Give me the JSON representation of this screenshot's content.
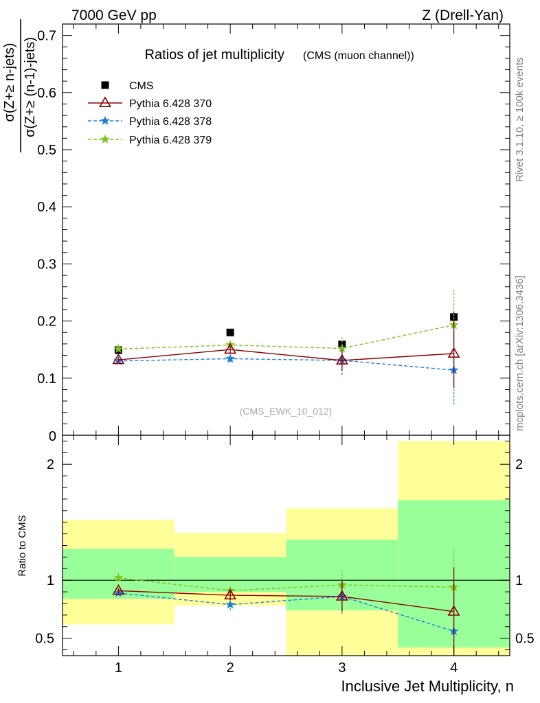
{
  "header": {
    "left": "7000 GeV pp",
    "right": "Z (Drell-Yan)"
  },
  "side_text": {
    "rivet": "Rivet 3.1.10, ≥ 100k events",
    "mcplots": "mcplots.cern.ch [arXiv:1306.3436]"
  },
  "colors": {
    "cms": "#000000",
    "p370": "#8b0000",
    "p378": "#1e7fe0",
    "p379": "#7fc31c",
    "band_yellow": "#ffff99",
    "band_green": "#99ff99"
  },
  "chart_data": [
    {
      "type": "scatter",
      "title": "Ratios of jet multiplicity",
      "subtitle": "(CMS (muon channel))",
      "watermark": "(CMS_EWK_10_012)",
      "ylabel_num": "σ(Z+≥ n-jets)",
      "ylabel_den": "σ(Z+≥ (n-1)-jets)",
      "xlim": [
        0.5,
        4.5
      ],
      "ylim": [
        0,
        0.72
      ],
      "yticks": [
        0.1,
        0.2,
        0.3,
        0.4,
        0.5,
        0.6,
        0.7
      ],
      "ytick_labels": [
        "0.1",
        "0.2",
        "0.3",
        "0.4",
        "0.5",
        "0.6",
        "0.7"
      ],
      "x": [
        1,
        2,
        3,
        4
      ],
      "legend_position": "top-left",
      "series": [
        {
          "name": "CMS",
          "marker": "square",
          "values": [
            0.149,
            0.18,
            0.159,
            0.207
          ],
          "err": [
            0.003,
            0.004,
            0.006,
            0.008
          ]
        },
        {
          "name": "Pythia 6.428 370",
          "marker": "triangle",
          "line": "solid",
          "values": [
            0.132,
            0.15,
            0.131,
            0.143
          ],
          "err": [
            0.003,
            0.006,
            0.018,
            0.06
          ]
        },
        {
          "name": "Pythia 6.428 378",
          "marker": "star",
          "line": "dashed",
          "values": [
            0.13,
            0.134,
            0.131,
            0.114
          ],
          "err": [
            0.003,
            0.006,
            0.025,
            0.06
          ]
        },
        {
          "name": "Pythia 6.428 379",
          "marker": "star",
          "line": "dashed",
          "values": [
            0.151,
            0.158,
            0.152,
            0.193
          ],
          "err": [
            0.003,
            0.006,
            0.02,
            0.062
          ]
        }
      ]
    },
    {
      "type": "scatter",
      "ylabel": "Ratio to CMS",
      "xlabel": "Inclusive Jet Multiplicity, n",
      "xlim": [
        0.5,
        4.5
      ],
      "ylim": [
        0.35,
        2.25
      ],
      "yticks": [
        0.5,
        1,
        2
      ],
      "ytick_labels": [
        "0.5",
        "1",
        "2"
      ],
      "xticks": [
        1,
        2,
        3,
        4
      ],
      "xtick_labels": [
        "1",
        "2",
        "3",
        "4"
      ],
      "bands": [
        {
          "x": [
            0.5,
            1.5
          ],
          "yellow": [
            0.62,
            1.52
          ],
          "green": [
            0.84,
            1.27
          ]
        },
        {
          "x": [
            1.5,
            2.5
          ],
          "yellow": [
            0.78,
            1.41
          ],
          "green": [
            0.9,
            1.2
          ]
        },
        {
          "x": [
            2.5,
            3.5
          ],
          "yellow": [
            0.35,
            1.62
          ],
          "green": [
            0.74,
            1.35
          ]
        },
        {
          "x": [
            3.5,
            4.5
          ],
          "yellow": [
            0.35,
            2.2
          ],
          "green": [
            0.42,
            1.69
          ]
        }
      ],
      "series": [
        {
          "name": "Pythia 6.428 370",
          "values": [
            0.91,
            0.87,
            0.86,
            0.73
          ],
          "err": [
            0.02,
            0.04,
            0.13,
            0.38
          ]
        },
        {
          "name": "Pythia 6.428 378",
          "values": [
            0.89,
            0.79,
            0.86,
            0.56
          ],
          "err": [
            0.02,
            0.05,
            0.15,
            0.4
          ]
        },
        {
          "name": "Pythia 6.428 379",
          "values": [
            1.02,
            0.91,
            0.96,
            0.94
          ],
          "err": [
            0.02,
            0.04,
            0.13,
            0.34
          ]
        }
      ]
    }
  ]
}
